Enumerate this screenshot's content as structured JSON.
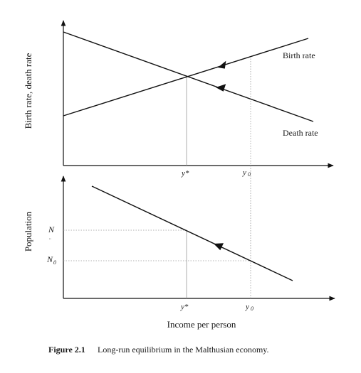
{
  "top_panel": {
    "y_axis_label": "Birth rate, death rate",
    "birth_rate_label": "Birth rate",
    "death_rate_label": "Death rate",
    "tick_y_star": "y*",
    "tick_y0": "y",
    "tick_y0_sub": "0"
  },
  "bottom_panel": {
    "y_axis_label": "Population",
    "tick_N": "N",
    "tick_N_mark": "¨",
    "tick_N0": "N",
    "tick_N0_sub": "0",
    "tick_y_star": "y*",
    "tick_y0": "y",
    "tick_y0_sub": "0",
    "x_axis_label": "Income per person"
  },
  "caption": {
    "number": "Figure 2.1",
    "text": "Long-run equilibrium in the Malthusian economy."
  },
  "colors": {
    "ink": "#111111",
    "guide": "#9a9a9a"
  }
}
